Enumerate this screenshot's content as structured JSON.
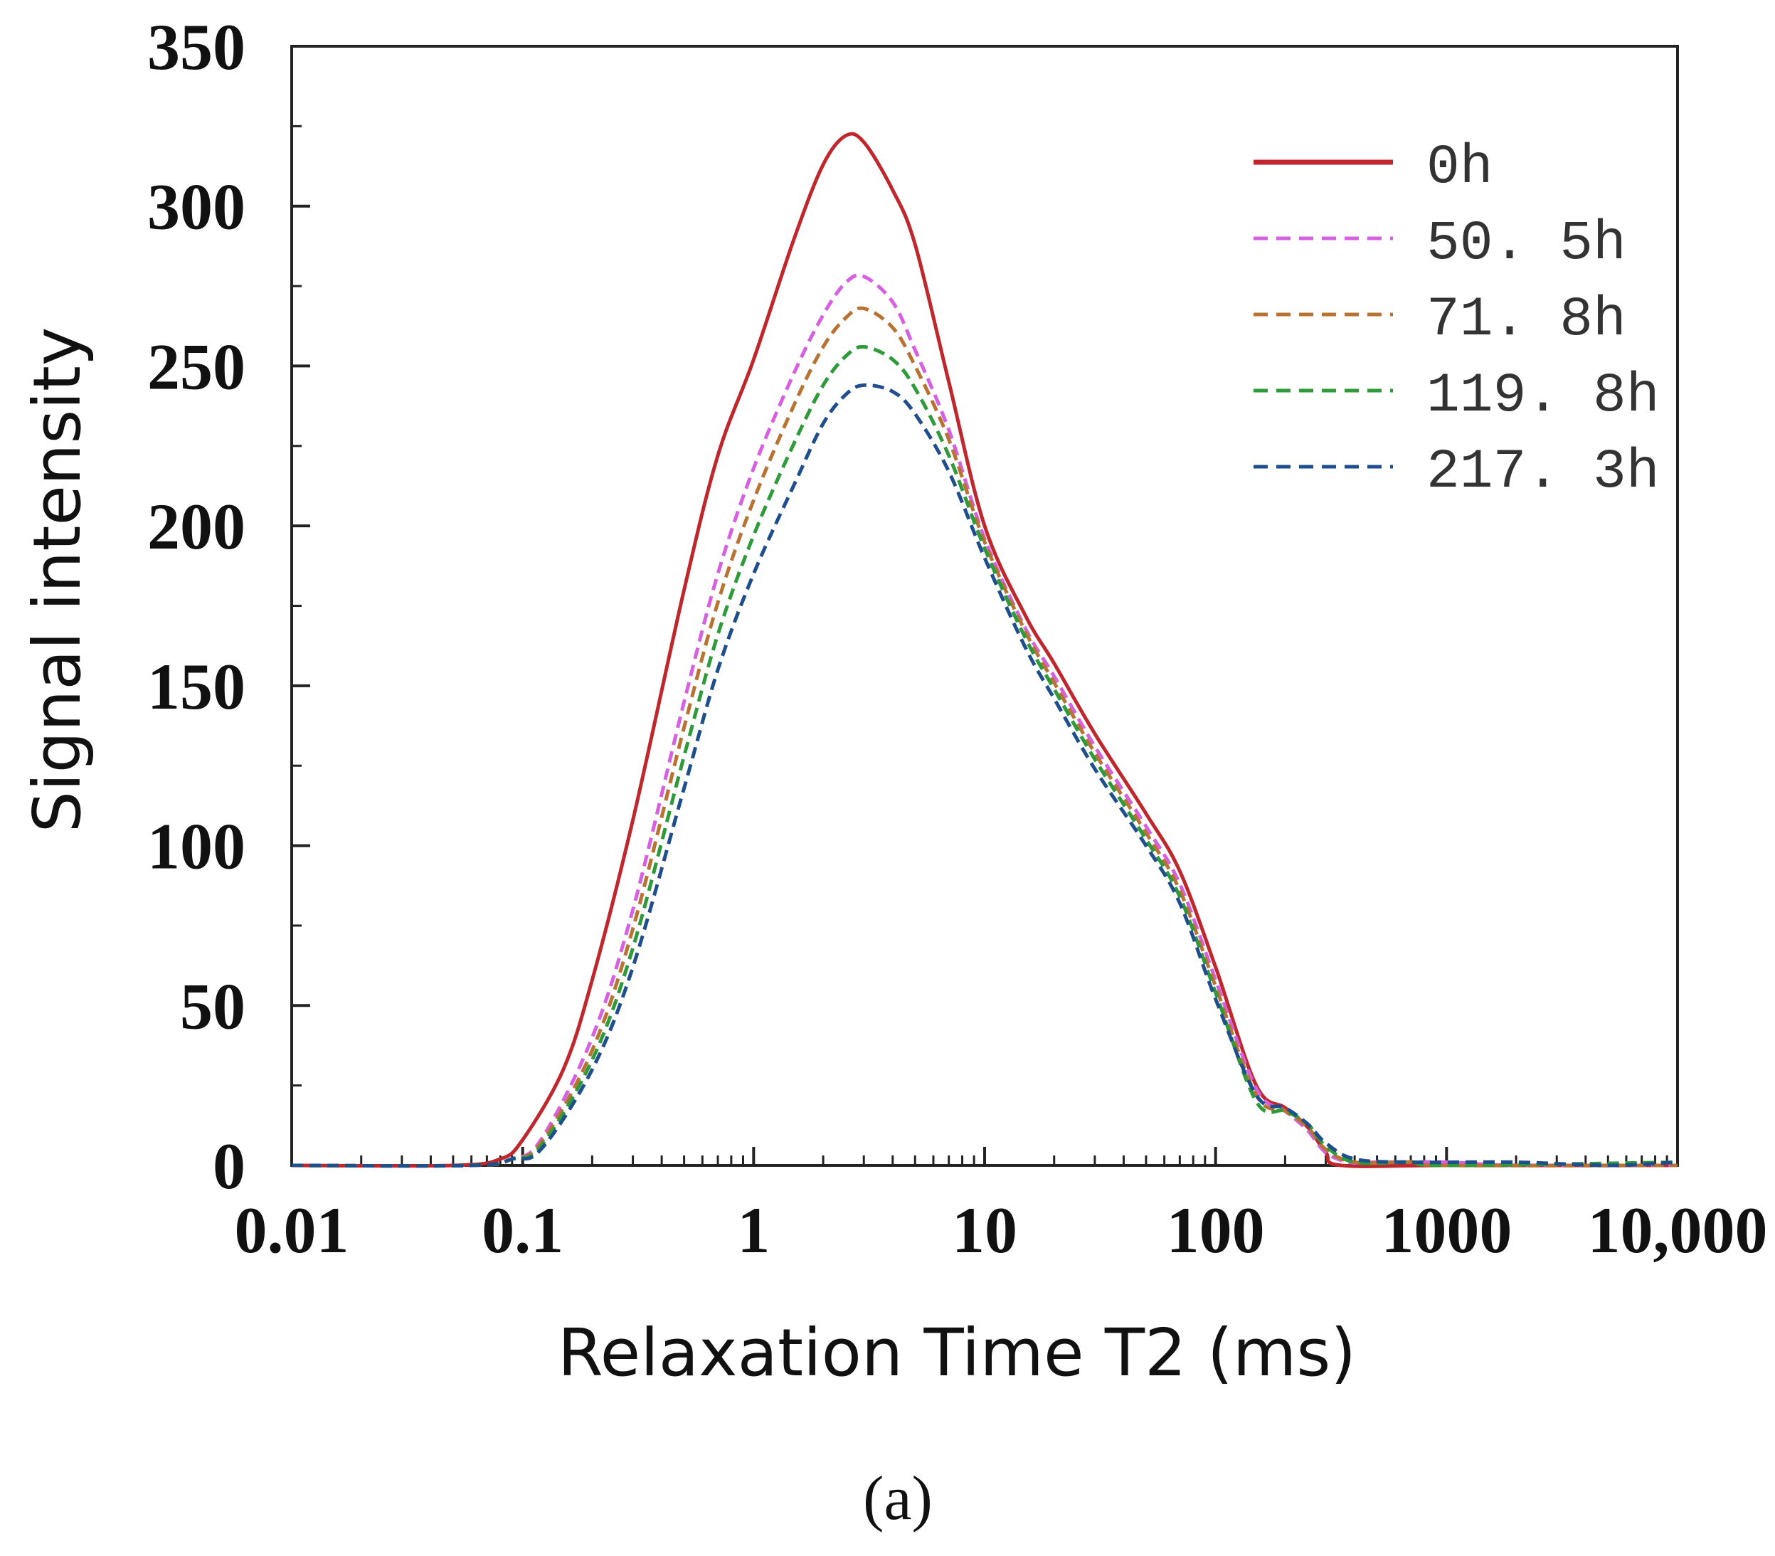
{
  "chart_data": {
    "type": "line",
    "title": "",
    "panel_label": "(a)",
    "xlabel": "Relaxation Time T2 (ms)",
    "ylabel": "Signal intensity",
    "xscale": "log",
    "xlim": [
      0.01,
      10000
    ],
    "ylim": [
      0,
      350
    ],
    "x_ticks": [
      0.01,
      0.1,
      1,
      10,
      100,
      1000,
      10000
    ],
    "x_tick_labels": [
      "0.01",
      "0.1",
      "1",
      "10",
      "100",
      "1000",
      "10,000"
    ],
    "y_ticks": [
      0,
      50,
      100,
      150,
      200,
      250,
      300,
      350
    ],
    "y_tick_labels": [
      "0",
      "50",
      "100",
      "150",
      "200",
      "250",
      "300",
      "350"
    ],
    "grid": false,
    "legend_position": "top-right",
    "series": [
      {
        "name": "0h",
        "color": "#c0272d",
        "style": "solid",
        "points": [
          [
            0.01,
            0
          ],
          [
            0.05,
            0
          ],
          [
            0.08,
            2
          ],
          [
            0.1,
            8
          ],
          [
            0.15,
            30
          ],
          [
            0.2,
            58
          ],
          [
            0.3,
            108
          ],
          [
            0.5,
            180
          ],
          [
            0.7,
            222
          ],
          [
            1,
            252
          ],
          [
            1.5,
            290
          ],
          [
            2,
            313
          ],
          [
            2.5,
            322
          ],
          [
            3,
            320
          ],
          [
            4,
            305
          ],
          [
            5,
            288
          ],
          [
            7,
            245
          ],
          [
            10,
            200
          ],
          [
            15,
            172
          ],
          [
            20,
            157
          ],
          [
            30,
            135
          ],
          [
            50,
            110
          ],
          [
            70,
            92
          ],
          [
            100,
            62
          ],
          [
            150,
            25
          ],
          [
            200,
            18
          ],
          [
            250,
            12
          ],
          [
            300,
            4
          ],
          [
            350,
            0
          ],
          [
            1000,
            0
          ],
          [
            10000,
            0
          ]
        ]
      },
      {
        "name": "50. 5h",
        "color": "#d660e0",
        "style": "dashed",
        "points": [
          [
            0.01,
            0
          ],
          [
            0.06,
            0
          ],
          [
            0.09,
            2
          ],
          [
            0.12,
            8
          ],
          [
            0.2,
            40
          ],
          [
            0.3,
            80
          ],
          [
            0.5,
            145
          ],
          [
            0.7,
            185
          ],
          [
            1,
            218
          ],
          [
            1.5,
            248
          ],
          [
            2,
            266
          ],
          [
            2.5,
            276
          ],
          [
            3,
            278
          ],
          [
            4,
            270
          ],
          [
            5,
            255
          ],
          [
            7,
            230
          ],
          [
            10,
            196
          ],
          [
            15,
            168
          ],
          [
            20,
            153
          ],
          [
            30,
            131
          ],
          [
            50,
            106
          ],
          [
            70,
            88
          ],
          [
            100,
            58
          ],
          [
            150,
            24
          ],
          [
            200,
            17
          ],
          [
            250,
            11
          ],
          [
            300,
            4
          ],
          [
            380,
            1
          ],
          [
            500,
            1
          ],
          [
            1000,
            1
          ],
          [
            2000,
            0
          ],
          [
            10000,
            0
          ]
        ]
      },
      {
        "name": "71. 8h",
        "color": "#b87333",
        "style": "dashed",
        "points": [
          [
            0.01,
            0
          ],
          [
            0.06,
            0
          ],
          [
            0.09,
            2
          ],
          [
            0.12,
            7
          ],
          [
            0.2,
            36
          ],
          [
            0.3,
            74
          ],
          [
            0.5,
            137
          ],
          [
            0.7,
            176
          ],
          [
            1,
            208
          ],
          [
            1.5,
            238
          ],
          [
            2,
            256
          ],
          [
            2.5,
            265
          ],
          [
            3,
            268
          ],
          [
            4,
            262
          ],
          [
            5,
            250
          ],
          [
            7,
            227
          ],
          [
            10,
            195
          ],
          [
            15,
            167
          ],
          [
            20,
            151
          ],
          [
            30,
            129
          ],
          [
            50,
            104
          ],
          [
            70,
            86
          ],
          [
            100,
            56
          ],
          [
            150,
            22
          ],
          [
            200,
            17
          ],
          [
            250,
            12
          ],
          [
            300,
            5
          ],
          [
            400,
            1
          ],
          [
            700,
            1
          ],
          [
            1000,
            0
          ],
          [
            10000,
            0
          ]
        ]
      },
      {
        "name": "119. 8h",
        "color": "#2e9a3a",
        "style": "dashed",
        "points": [
          [
            0.01,
            0
          ],
          [
            0.06,
            0
          ],
          [
            0.09,
            2
          ],
          [
            0.12,
            6
          ],
          [
            0.2,
            33
          ],
          [
            0.3,
            68
          ],
          [
            0.5,
            128
          ],
          [
            0.7,
            166
          ],
          [
            1,
            197
          ],
          [
            1.5,
            226
          ],
          [
            2,
            244
          ],
          [
            2.5,
            253
          ],
          [
            3,
            256
          ],
          [
            4,
            252
          ],
          [
            5,
            243
          ],
          [
            7,
            222
          ],
          [
            10,
            193
          ],
          [
            15,
            165
          ],
          [
            20,
            149
          ],
          [
            30,
            127
          ],
          [
            50,
            102
          ],
          [
            70,
            84
          ],
          [
            100,
            54
          ],
          [
            150,
            20
          ],
          [
            200,
            17
          ],
          [
            250,
            13
          ],
          [
            300,
            6
          ],
          [
            400,
            1
          ],
          [
            700,
            1
          ],
          [
            1000,
            0
          ],
          [
            10000,
            1
          ]
        ]
      },
      {
        "name": "217. 3h",
        "color": "#1f4e8c",
        "style": "dashed",
        "points": [
          [
            0.01,
            0
          ],
          [
            0.06,
            0
          ],
          [
            0.09,
            2
          ],
          [
            0.12,
            5
          ],
          [
            0.2,
            30
          ],
          [
            0.3,
            62
          ],
          [
            0.5,
            118
          ],
          [
            0.7,
            155
          ],
          [
            1,
            185
          ],
          [
            1.5,
            213
          ],
          [
            2,
            232
          ],
          [
            2.5,
            241
          ],
          [
            3,
            244
          ],
          [
            4,
            242
          ],
          [
            5,
            235
          ],
          [
            7,
            217
          ],
          [
            10,
            190
          ],
          [
            15,
            162
          ],
          [
            20,
            146
          ],
          [
            30,
            124
          ],
          [
            50,
            100
          ],
          [
            70,
            82
          ],
          [
            100,
            52
          ],
          [
            150,
            22
          ],
          [
            200,
            18
          ],
          [
            250,
            13
          ],
          [
            300,
            7
          ],
          [
            400,
            2
          ],
          [
            700,
            1
          ],
          [
            2000,
            1
          ],
          [
            5000,
            0
          ],
          [
            10000,
            1
          ]
        ]
      }
    ]
  }
}
